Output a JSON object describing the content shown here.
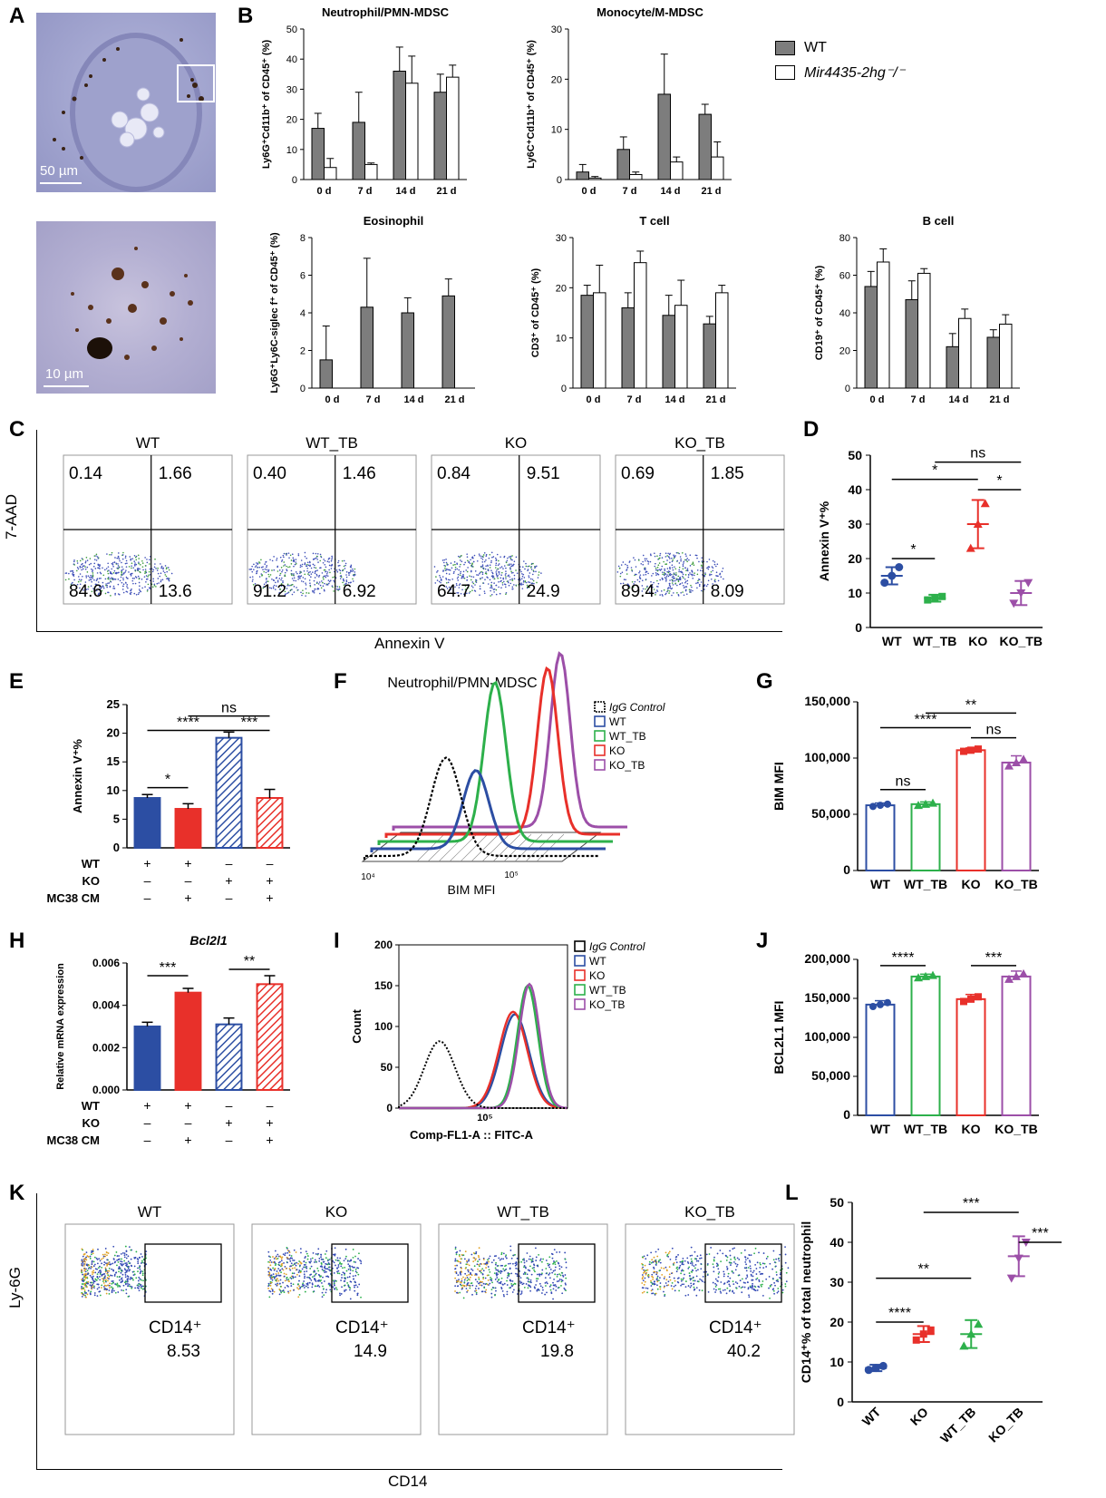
{
  "panels": {
    "A": {
      "letter": "A",
      "scale_top": "50 µm",
      "scale_bottom": "10 µm"
    },
    "B": {
      "letter": "B",
      "legend": [
        "WT",
        "Mir4435-2hg⁻/⁻"
      ],
      "charts": [
        {
          "title": "Neutrophil/PMN-MDSC",
          "ylabel": "Ly6G⁺Cd11b⁺ of CD45⁺ (%)",
          "categories": [
            "0 d",
            "7 d",
            "14 d",
            "21 d"
          ],
          "ylim": [
            0,
            50
          ],
          "ticks": [
            0,
            10,
            20,
            30,
            40,
            50
          ],
          "series": [
            {
              "name": "WT",
              "values": [
                17,
                19,
                36,
                29
              ],
              "err": [
                5,
                10,
                8,
                6
              ]
            },
            {
              "name": "Mir4435-2hg⁻/⁻",
              "values": [
                4,
                5,
                32,
                34
              ],
              "err": [
                3,
                0.5,
                9,
                4
              ]
            }
          ]
        },
        {
          "title": "Monocyte/M-MDSC",
          "ylabel": "Ly6C⁺Cd11b⁺ of CD45⁺ (%)",
          "categories": [
            "0 d",
            "7 d",
            "14 d",
            "21 d"
          ],
          "ylim": [
            0,
            30
          ],
          "ticks": [
            0,
            10,
            20,
            30
          ],
          "series": [
            {
              "name": "WT",
              "values": [
                1.5,
                6,
                17,
                13
              ],
              "err": [
                1.5,
                2.5,
                8,
                2
              ]
            },
            {
              "name": "Mir4435-2hg⁻/⁻",
              "values": [
                0.3,
                1,
                3.5,
                4.5
              ],
              "err": [
                0.3,
                0.5,
                1,
                3
              ]
            }
          ]
        },
        {
          "title": "Eosinophil",
          "ylabel": "Ly6G⁺Ly6C-siglec f⁺ of CD45⁺ (%)",
          "categories": [
            "0 d",
            "7 d",
            "14 d",
            "21 d"
          ],
          "ylim": [
            0,
            8
          ],
          "ticks": [
            0,
            2,
            4,
            6,
            8
          ],
          "series": [
            {
              "name": "WT",
              "values": [
                1.5,
                4.3,
                4,
                4.9
              ],
              "err": [
                1.8,
                2.6,
                0.8,
                0.9
              ]
            },
            {
              "name": "Mir4435-2hg⁻/⁻",
              "values": [
                0,
                0,
                0,
                0
              ],
              "err": [
                0,
                0,
                0,
                0
              ]
            }
          ]
        },
        {
          "title": "T cell",
          "ylabel": "CD3⁺ of CD45⁺ (%)",
          "categories": [
            "0 d",
            "7 d",
            "14 d",
            "21 d"
          ],
          "ylim": [
            0,
            30
          ],
          "ticks": [
            0,
            10,
            20,
            30
          ],
          "series": [
            {
              "name": "WT",
              "values": [
                18.5,
                16,
                14.5,
                12.8
              ],
              "err": [
                2,
                3,
                4,
                1.5
              ]
            },
            {
              "name": "Mir4435-2hg⁻/⁻",
              "values": [
                19,
                25,
                16.5,
                19
              ],
              "err": [
                5.5,
                2.3,
                5,
                1.5
              ]
            }
          ]
        },
        {
          "title": "B cell",
          "ylabel": "CD19⁺ of CD45⁺ (%)",
          "categories": [
            "0 d",
            "7 d",
            "14 d",
            "21 d"
          ],
          "ylim": [
            0,
            80
          ],
          "ticks": [
            0,
            20,
            40,
            60,
            80
          ],
          "series": [
            {
              "name": "WT",
              "values": [
                54,
                47,
                22,
                27
              ],
              "err": [
                8,
                10,
                7,
                4
              ]
            },
            {
              "name": "Mir4435-2hg⁻/⁻",
              "values": [
                67,
                61,
                37,
                34
              ],
              "err": [
                7,
                2.5,
                5,
                5
              ]
            }
          ]
        }
      ]
    },
    "C": {
      "letter": "C",
      "ylabel": "7-AAD",
      "xlabel": "Annexin V",
      "plots": [
        {
          "title": "WT",
          "q": [
            "0.14",
            "1.66",
            "84.6",
            "13.6"
          ]
        },
        {
          "title": "WT_TB",
          "q": [
            "0.40",
            "1.46",
            "91.2",
            "6.92"
          ]
        },
        {
          "title": "KO",
          "q": [
            "0.84",
            "9.51",
            "64.7",
            "24.9"
          ]
        },
        {
          "title": "KO_TB",
          "q": [
            "0.69",
            "1.85",
            "89.4",
            "8.09"
          ]
        }
      ]
    },
    "D": {
      "letter": "D",
      "ylabel": "Annexin V⁺%",
      "categories": [
        "WT",
        "WT_TB",
        "KO",
        "KO_TB"
      ],
      "ylim": [
        0,
        50
      ],
      "ticks": [
        0,
        10,
        20,
        30,
        40,
        50
      ],
      "means": [
        15,
        8.5,
        30,
        10
      ],
      "sds": [
        2.5,
        1,
        7,
        3.5
      ],
      "points": [
        [
          13,
          15,
          17.5
        ],
        [
          8,
          8.5,
          9
        ],
        [
          23,
          30,
          36
        ],
        [
          7,
          10,
          13
        ]
      ],
      "sig": [
        "ns",
        "*",
        "*",
        "*"
      ]
    },
    "E": {
      "letter": "E",
      "ylabel": "Annexin V⁺%",
      "ylim": [
        0,
        25
      ],
      "ticks": [
        0,
        5,
        10,
        15,
        20,
        25
      ],
      "values": [
        8.7,
        6.8,
        19.2,
        8.7
      ],
      "err": [
        0.6,
        0.9,
        1,
        1.5
      ],
      "rows": [
        {
          "label": "WT",
          "marks": [
            "+",
            "+",
            "–",
            "–"
          ]
        },
        {
          "label": "KO",
          "marks": [
            "–",
            "–",
            "+",
            "+"
          ]
        },
        {
          "label": "MC38 CM",
          "marks": [
            "–",
            "+",
            "–",
            "+"
          ]
        }
      ],
      "sig": [
        "ns",
        "****",
        "***",
        "*"
      ]
    },
    "F": {
      "letter": "F",
      "title": "Neutrophil/PMN-MDSC",
      "xlabel": "BIM MFI",
      "legend": [
        "IgG Control",
        "WT",
        "WT_TB",
        "KO",
        "KO_TB"
      ],
      "tick_lo": "10⁴",
      "tick_hi": "10⁵"
    },
    "G": {
      "letter": "G",
      "ylabel": "BIM MFI",
      "categories": [
        "WT",
        "WT_TB",
        "KO",
        "KO_TB"
      ],
      "ylim": [
        0,
        150000
      ],
      "ticks": [
        "0",
        "50,000",
        "100,000",
        "150,000"
      ],
      "values": [
        58000,
        59000,
        107000,
        96000
      ],
      "err": [
        2000,
        2000,
        2000,
        6000
      ],
      "sig": [
        "**",
        "****",
        "ns",
        "ns"
      ]
    },
    "H": {
      "letter": "H",
      "title": "Bcl2l1",
      "ylabel": "Relative mRNA expression",
      "ylim": [
        0,
        0.006
      ],
      "ticks": [
        "0.000",
        "0.002",
        "0.004",
        "0.006"
      ],
      "values": [
        0.003,
        0.0046,
        0.0031,
        0.005
      ],
      "err": [
        0.0002,
        0.0002,
        0.0003,
        0.0004
      ],
      "rows": [
        {
          "label": "WT",
          "marks": [
            "+",
            "+",
            "–",
            "–"
          ]
        },
        {
          "label": "KO",
          "marks": [
            "–",
            "–",
            "+",
            "+"
          ]
        },
        {
          "label": "MC38 CM",
          "marks": [
            "–",
            "+",
            "–",
            "+"
          ]
        }
      ],
      "sig": [
        "***",
        "**"
      ]
    },
    "I": {
      "letter": "I",
      "ylabel": "Count",
      "xlabel": "Comp-FL1-A :: FITC-A",
      "ticks": [
        0,
        50,
        100,
        150,
        200
      ],
      "tick_x": "10⁵",
      "legend": [
        "IgG Control",
        "WT",
        "KO",
        "WT_TB",
        "KO_TB"
      ]
    },
    "J": {
      "letter": "J",
      "ylabel": "BCL2L1 MFI",
      "categories": [
        "WT",
        "WT_TB",
        "KO",
        "KO_TB"
      ],
      "ylim": [
        0,
        200000
      ],
      "ticks": [
        "0",
        "50,000",
        "100,000",
        "150,000",
        "200,000"
      ],
      "values": [
        142000,
        178000,
        149000,
        178000
      ],
      "err": [
        5000,
        3000,
        6000,
        7000
      ],
      "sig": [
        "****",
        "***"
      ]
    },
    "K": {
      "letter": "K",
      "ylabel": "Ly-6G",
      "xlabel": "CD14",
      "gate_label": "CD14⁺",
      "plots": [
        {
          "title": "WT",
          "value": "8.53"
        },
        {
          "title": "KO",
          "value": "14.9"
        },
        {
          "title": "WT_TB",
          "value": "19.8"
        },
        {
          "title": "KO_TB",
          "value": "40.2"
        }
      ]
    },
    "L": {
      "letter": "L",
      "ylabel": "CD14⁺% of total neutrophil",
      "categories": [
        "WT",
        "KO",
        "WT_TB",
        "KO_TB"
      ],
      "ylim": [
        0,
        50
      ],
      "ticks": [
        0,
        10,
        20,
        30,
        40,
        50
      ],
      "means": [
        8.5,
        17,
        17,
        36.5
      ],
      "sds": [
        0.8,
        2,
        3.5,
        5
      ],
      "points": [
        [
          8,
          8.5,
          9
        ],
        [
          15.5,
          17,
          18
        ],
        [
          14,
          17,
          19.5
        ],
        [
          31,
          36,
          40
        ]
      ],
      "sig": [
        "***",
        "***",
        "**",
        "****"
      ]
    }
  },
  "colors": {
    "wt": "#2c4ea3",
    "ko": "#e8302a",
    "wt_tb": "#2db04b",
    "ko_tb": "#9c4fa8",
    "gray": "#7d7d7d"
  }
}
